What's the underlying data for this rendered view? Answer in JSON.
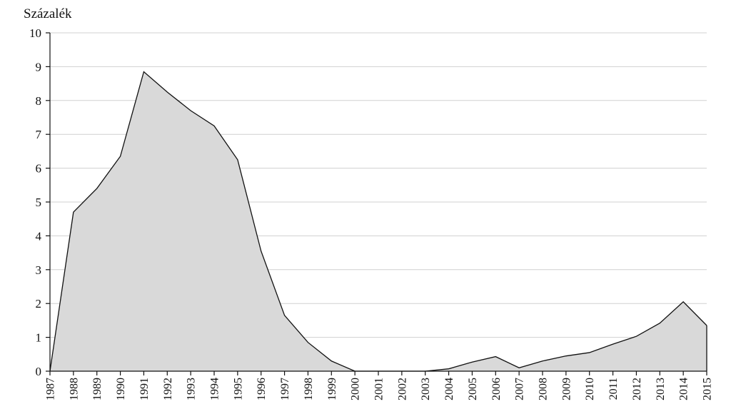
{
  "chart_data": {
    "type": "area",
    "ylabel": "Százalék",
    "xlabel": "",
    "title": "",
    "ylim": [
      0,
      10
    ],
    "yticks": [
      0,
      1,
      2,
      3,
      4,
      5,
      6,
      7,
      8,
      9,
      10
    ],
    "grid": true,
    "categories": [
      "1987",
      "1988",
      "1989",
      "1990",
      "1991",
      "1992",
      "1993",
      "1994",
      "1995",
      "1996",
      "1997",
      "1998",
      "1999",
      "2000",
      "2001",
      "2002",
      "2003",
      "2004",
      "2005",
      "2006",
      "2007",
      "2008",
      "2009",
      "2010",
      "2011",
      "2012",
      "2013",
      "2014",
      "2015"
    ],
    "values": [
      0,
      4.7,
      5.4,
      6.35,
      8.85,
      8.25,
      7.7,
      7.25,
      6.25,
      3.55,
      1.65,
      0.85,
      0.3,
      0,
      0,
      0,
      0,
      0.07,
      0.27,
      0.43,
      0.1,
      0.3,
      0.45,
      0.55,
      0.8,
      1.03,
      1.42,
      2.05,
      1.35
    ],
    "colors": {
      "fill": "#d9d9d9",
      "line": "#111111",
      "grid": "#d0d0d0"
    }
  }
}
